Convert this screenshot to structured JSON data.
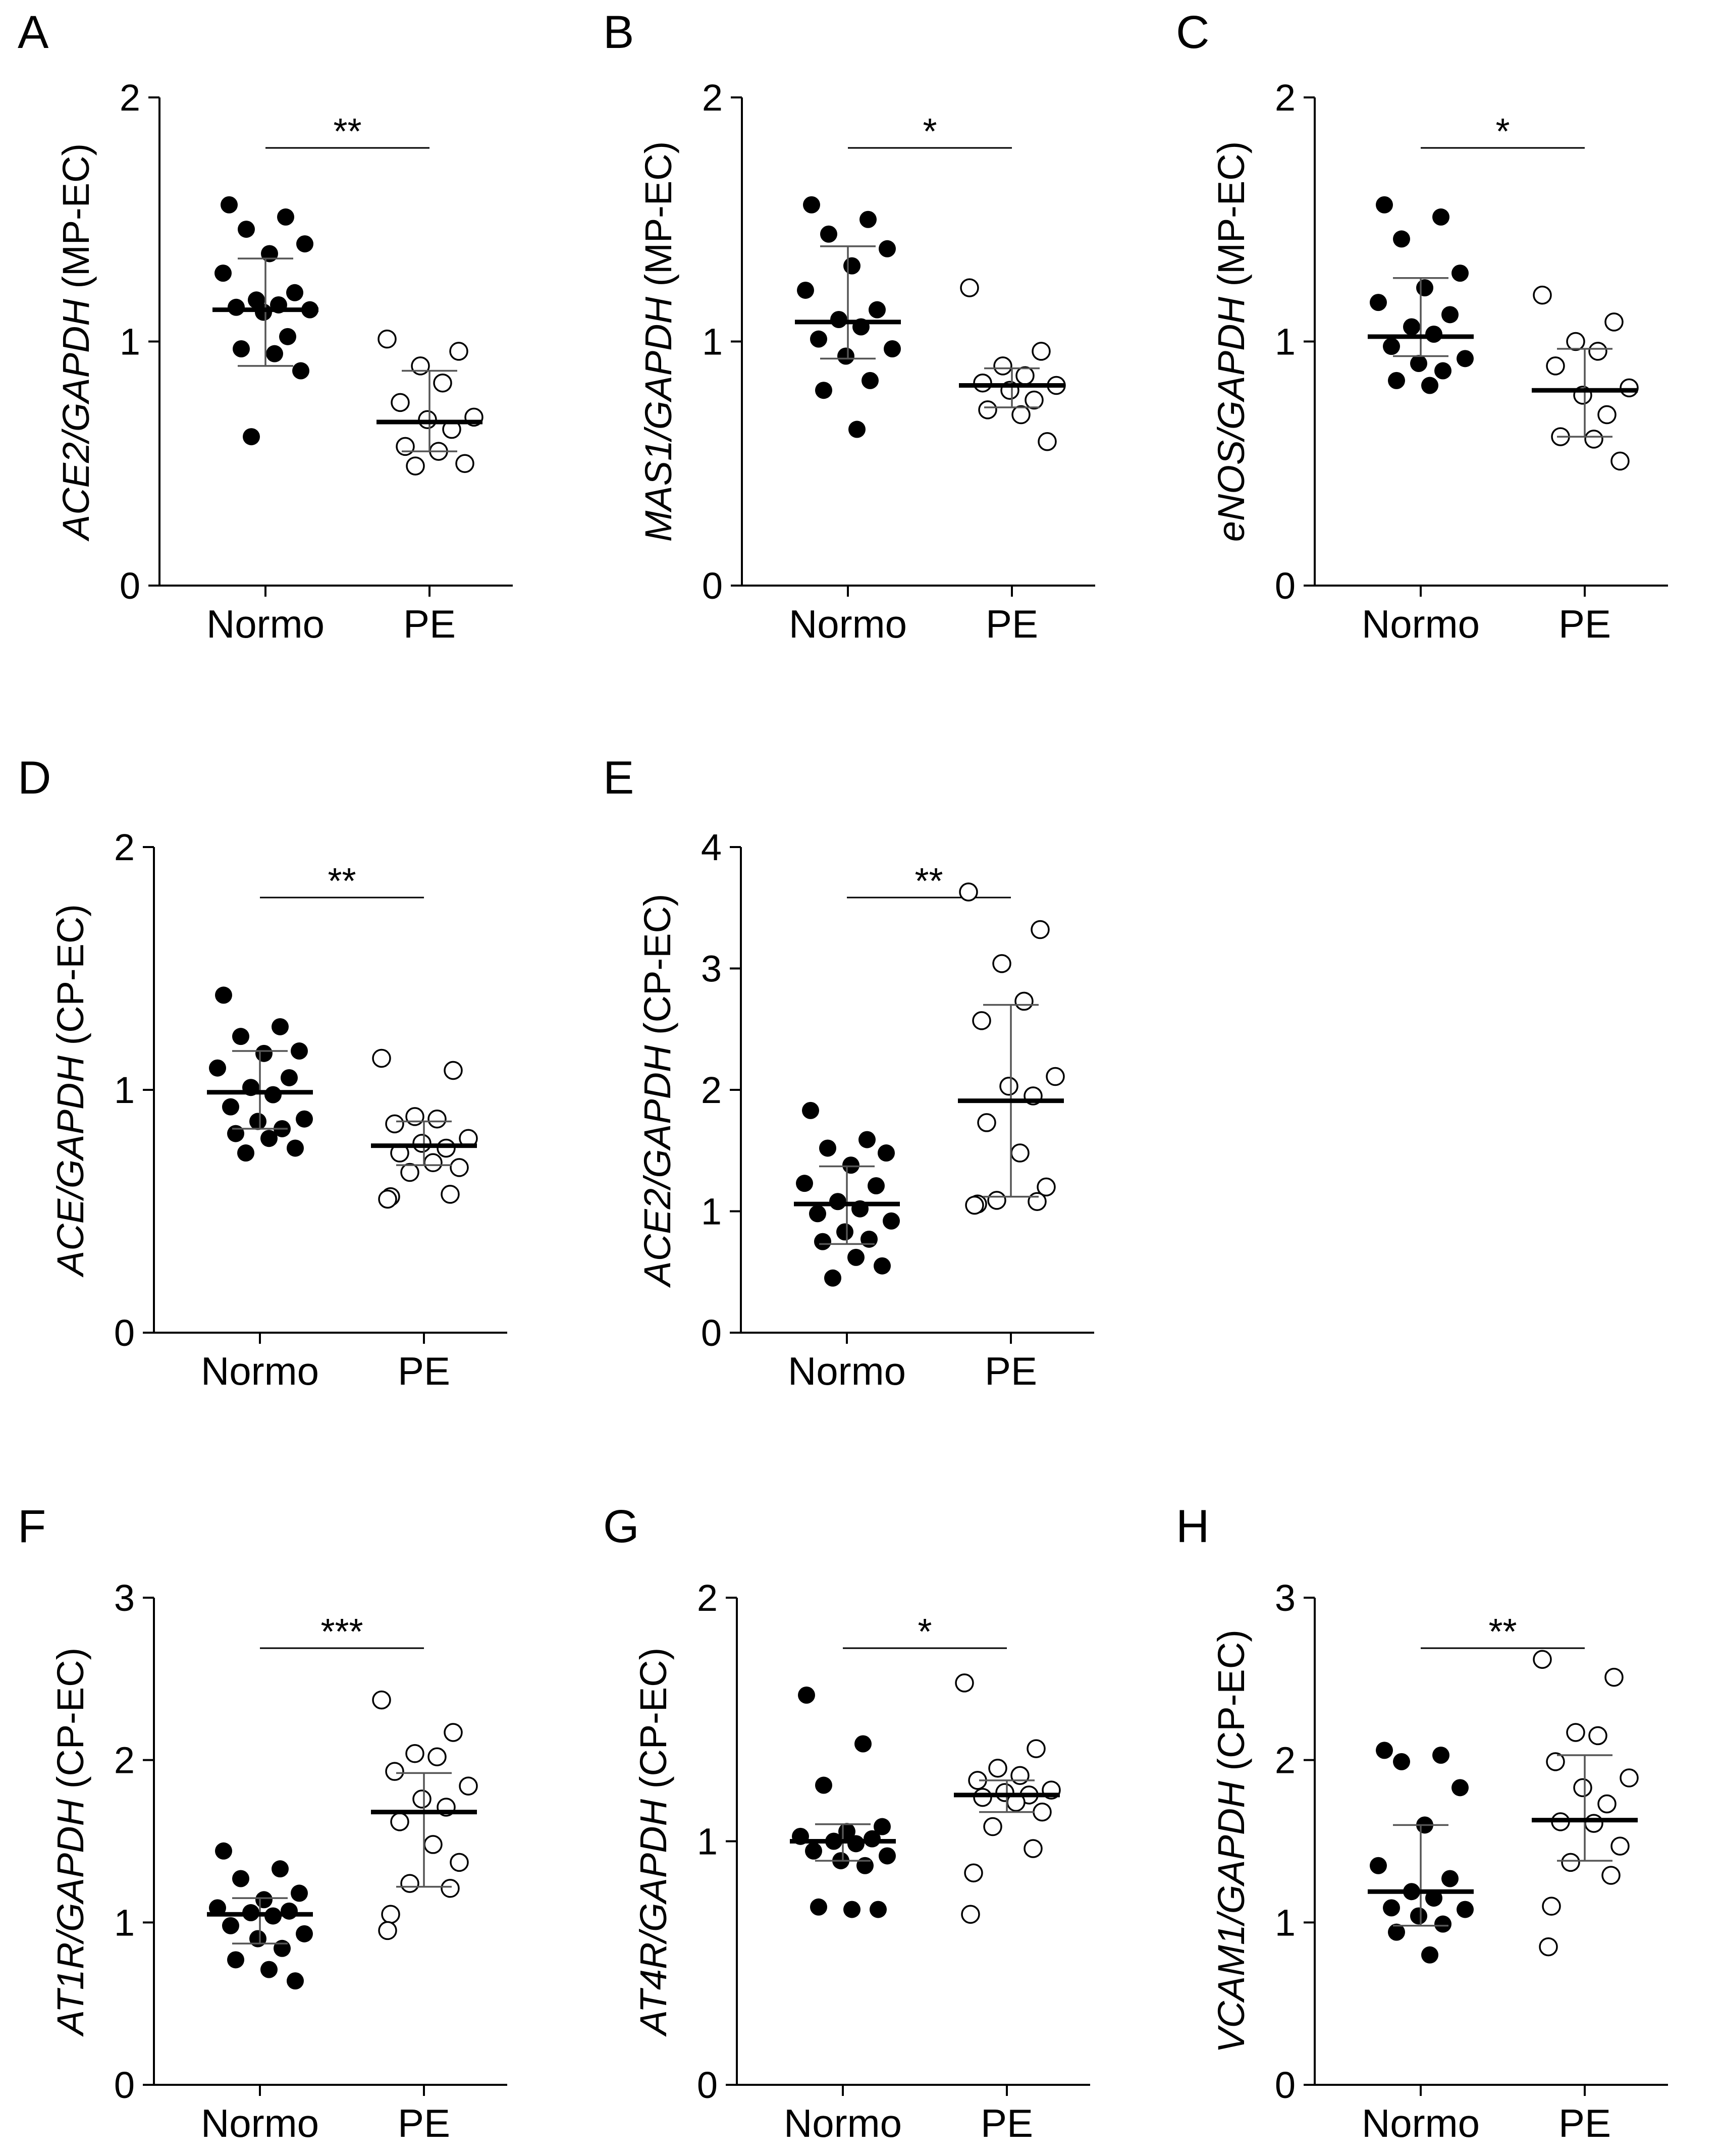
{
  "figure": {
    "panels": [
      "A",
      "B",
      "C",
      "D",
      "E",
      "F",
      "G",
      "H"
    ]
  },
  "chart_data": [
    {
      "panel": "A",
      "type": "scatter",
      "ylabel_italic": "ACE2/GAPDH",
      "ylabel_rest": " (MP-EC)",
      "categories": [
        "Normo",
        "PE"
      ],
      "ylim": [
        0,
        2
      ],
      "yticks": [
        "0",
        "1",
        "2"
      ],
      "significance": "**",
      "series": [
        {
          "name": "Normo",
          "filled": true,
          "mean": 1.13,
          "sd_low": 0.9,
          "sd_high": 1.34,
          "values": [
            1.56,
            1.51,
            1.46,
            1.4,
            1.36,
            1.28,
            1.2,
            1.17,
            1.15,
            1.14,
            1.13,
            1.12,
            1.02,
            0.97,
            0.95,
            0.88,
            0.61
          ]
        },
        {
          "name": "PE",
          "filled": false,
          "mean": 0.67,
          "sd_low": 0.55,
          "sd_high": 0.88,
          "values": [
            1.01,
            0.96,
            0.9,
            0.83,
            0.75,
            0.69,
            0.68,
            0.64,
            0.57,
            0.55,
            0.5,
            0.49
          ]
        }
      ]
    },
    {
      "panel": "B",
      "type": "scatter",
      "ylabel_italic": "MAS1/GAPDH",
      "ylabel_rest": " (MP-EC)",
      "categories": [
        "Normo",
        "PE"
      ],
      "ylim": [
        0,
        2
      ],
      "yticks": [
        "0",
        "1",
        "2"
      ],
      "significance": "*",
      "series": [
        {
          "name": "Normo",
          "filled": true,
          "mean": 1.08,
          "sd_low": 0.93,
          "sd_high": 1.39,
          "values": [
            1.56,
            1.5,
            1.44,
            1.38,
            1.31,
            1.21,
            1.13,
            1.09,
            1.06,
            1.01,
            0.97,
            0.94,
            0.84,
            0.8,
            0.64
          ]
        },
        {
          "name": "PE",
          "filled": false,
          "mean": 0.82,
          "sd_low": 0.73,
          "sd_high": 0.89,
          "values": [
            1.22,
            0.96,
            0.9,
            0.86,
            0.83,
            0.82,
            0.8,
            0.76,
            0.72,
            0.7,
            0.59
          ]
        }
      ]
    },
    {
      "panel": "C",
      "type": "scatter",
      "ylabel_italic": "eNOS/GAPDH",
      "ylabel_rest": " (MP-EC)",
      "categories": [
        "Normo",
        "PE"
      ],
      "ylim": [
        0,
        2
      ],
      "yticks": [
        "0",
        "1",
        "2"
      ],
      "significance": "*",
      "series": [
        {
          "name": "Normo",
          "filled": true,
          "mean": 1.02,
          "sd_low": 0.94,
          "sd_high": 1.26,
          "values": [
            1.56,
            1.51,
            1.42,
            1.28,
            1.22,
            1.16,
            1.11,
            1.06,
            1.03,
            0.98,
            0.93,
            0.91,
            0.88,
            0.84,
            0.82
          ]
        },
        {
          "name": "PE",
          "filled": false,
          "mean": 0.8,
          "sd_low": 0.61,
          "sd_high": 0.97,
          "values": [
            1.19,
            1.08,
            1.0,
            0.96,
            0.9,
            0.81,
            0.78,
            0.7,
            0.61,
            0.6,
            0.51
          ]
        }
      ]
    },
    {
      "panel": "D",
      "type": "scatter",
      "ylabel_italic": "ACE/GAPDH",
      "ylabel_rest": " (CP-EC)",
      "categories": [
        "Normo",
        "PE"
      ],
      "ylim": [
        0,
        2
      ],
      "yticks": [
        "0",
        "1",
        "2"
      ],
      "significance": "**",
      "series": [
        {
          "name": "Normo",
          "filled": true,
          "mean": 0.99,
          "sd_low": 0.84,
          "sd_high": 1.16,
          "values": [
            1.39,
            1.26,
            1.22,
            1.16,
            1.15,
            1.09,
            1.05,
            1.01,
            0.98,
            0.93,
            0.88,
            0.87,
            0.84,
            0.82,
            0.8,
            0.76,
            0.74
          ]
        },
        {
          "name": "PE",
          "filled": false,
          "mean": 0.77,
          "sd_low": 0.69,
          "sd_high": 0.87,
          "values": [
            1.13,
            1.08,
            0.89,
            0.88,
            0.86,
            0.8,
            0.78,
            0.76,
            0.74,
            0.7,
            0.68,
            0.66,
            0.57,
            0.56,
            0.55
          ]
        }
      ]
    },
    {
      "panel": "E",
      "type": "scatter",
      "ylabel_italic": "ACE2/GAPDH",
      "ylabel_rest": " (CP-EC)",
      "categories": [
        "Normo",
        "PE"
      ],
      "ylim": [
        0,
        4
      ],
      "yticks": [
        "0",
        "1",
        "2",
        "3",
        "4"
      ],
      "significance": "**",
      "series": [
        {
          "name": "Normo",
          "filled": true,
          "mean": 1.06,
          "sd_low": 0.73,
          "sd_high": 1.37,
          "values": [
            1.83,
            1.59,
            1.52,
            1.48,
            1.38,
            1.23,
            1.21,
            1.08,
            1.02,
            0.98,
            0.92,
            0.83,
            0.77,
            0.75,
            0.62,
            0.55,
            0.45
          ]
        },
        {
          "name": "PE",
          "filled": false,
          "mean": 1.91,
          "sd_low": 1.12,
          "sd_high": 2.7,
          "values": [
            3.63,
            3.32,
            3.04,
            2.73,
            2.57,
            2.11,
            2.03,
            1.95,
            1.73,
            1.48,
            1.2,
            1.09,
            1.08,
            1.06,
            1.05
          ]
        }
      ]
    },
    {
      "panel": "F",
      "type": "scatter",
      "ylabel_italic": "AT1R/GAPDH",
      "ylabel_rest": " (CP-EC)",
      "categories": [
        "Normo",
        "PE"
      ],
      "ylim": [
        0,
        3
      ],
      "yticks": [
        "0",
        "1",
        "2",
        "3"
      ],
      "significance": "***",
      "series": [
        {
          "name": "Normo",
          "filled": true,
          "mean": 1.05,
          "sd_low": 0.87,
          "sd_high": 1.15,
          "values": [
            1.44,
            1.33,
            1.27,
            1.18,
            1.14,
            1.09,
            1.07,
            1.06,
            1.04,
            0.98,
            0.93,
            0.9,
            0.84,
            0.77,
            0.71,
            0.64
          ]
        },
        {
          "name": "PE",
          "filled": false,
          "mean": 1.68,
          "sd_low": 1.22,
          "sd_high": 1.92,
          "values": [
            2.37,
            2.17,
            2.04,
            2.02,
            1.93,
            1.84,
            1.76,
            1.71,
            1.62,
            1.48,
            1.37,
            1.24,
            1.21,
            1.05,
            0.95
          ]
        }
      ]
    },
    {
      "panel": "G",
      "type": "scatter",
      "ylabel_italic": "AT4R/GAPDH",
      "ylabel_rest": " (CP-EC)",
      "categories": [
        "Normo",
        "PE"
      ],
      "ylim": [
        0,
        2
      ],
      "yticks": [
        "0",
        "1",
        "2"
      ],
      "significance": "*",
      "series": [
        {
          "name": "Normo",
          "filled": true,
          "mean": 1.0,
          "sd_low": 0.92,
          "sd_high": 1.07,
          "values": [
            1.6,
            1.4,
            1.23,
            1.06,
            1.04,
            1.02,
            1.01,
            1.0,
            0.99,
            0.96,
            0.94,
            0.92,
            0.9,
            0.73,
            0.72,
            0.72
          ]
        },
        {
          "name": "PE",
          "filled": false,
          "mean": 1.19,
          "sd_low": 1.12,
          "sd_high": 1.25,
          "values": [
            1.65,
            1.38,
            1.3,
            1.27,
            1.25,
            1.21,
            1.2,
            1.19,
            1.18,
            1.16,
            1.12,
            1.06,
            0.97,
            0.87,
            0.7
          ]
        }
      ]
    },
    {
      "panel": "H",
      "type": "scatter",
      "ylabel_italic": "VCAM1/GAPDH",
      "ylabel_rest": " (CP-EC)",
      "categories": [
        "Normo",
        "PE"
      ],
      "ylim": [
        0,
        3
      ],
      "yticks": [
        "0",
        "1",
        "2",
        "3"
      ],
      "significance": "**",
      "series": [
        {
          "name": "Normo",
          "filled": true,
          "mean": 1.19,
          "sd_low": 0.98,
          "sd_high": 1.6,
          "values": [
            2.06,
            2.03,
            1.99,
            1.83,
            1.6,
            1.35,
            1.27,
            1.19,
            1.15,
            1.09,
            1.08,
            1.04,
            0.99,
            0.94,
            0.8
          ]
        },
        {
          "name": "PE",
          "filled": false,
          "mean": 1.63,
          "sd_low": 1.38,
          "sd_high": 2.03,
          "values": [
            2.62,
            2.51,
            2.17,
            2.15,
            1.99,
            1.89,
            1.83,
            1.73,
            1.62,
            1.61,
            1.47,
            1.37,
            1.29,
            1.1,
            0.85
          ]
        }
      ]
    }
  ]
}
